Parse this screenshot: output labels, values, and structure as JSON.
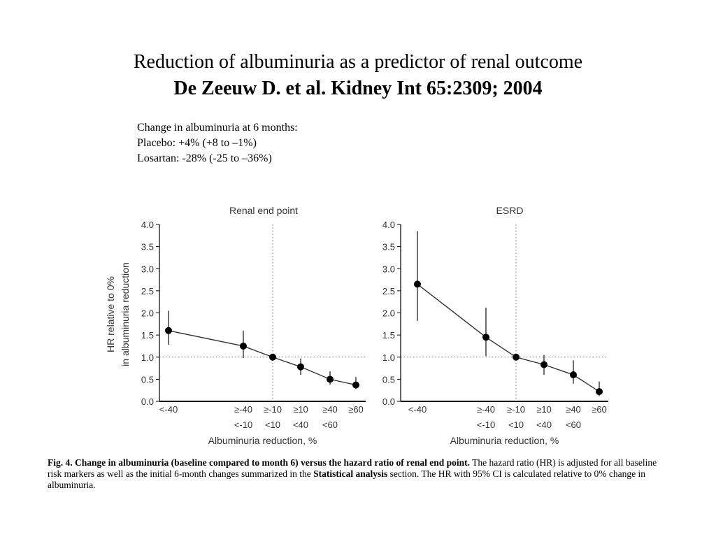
{
  "slide": {
    "title_line1": "Reduction of albuminuria as a predictor of renal outcome",
    "title_line2": "De Zeeuw D. et al. Kidney Int 65:2309; 2004",
    "notes": [
      "Change in albuminuria at 6 months:",
      "Placebo: +4% (+8 to –1%)",
      "Losartan: -28% (-25 to –36%)"
    ]
  },
  "figure": {
    "caption_lead": "Fig. 4.  Change in albuminuria (baseline compared to month 6) versus the hazard ratio of renal end point.",
    "caption_text1": " The hazard ratio (HR) is adjusted for all baseline risk markers as well as the initial 6-month changes summarized in the ",
    "caption_bold": "Statistical analysis",
    "caption_text2": " section. The HR with 95% CI is calculated relative to 0% change in albuminuria."
  },
  "chart_data": [
    {
      "type": "line",
      "title": "Renal end point",
      "xlabel": "Albuminuria reduction, %",
      "ylabel": [
        "HR relative to 0%",
        "in albuminuria reduction"
      ],
      "categories": [
        [
          "<-40",
          ""
        ],
        [
          "≥-40",
          "<-10"
        ],
        [
          "≥-10",
          "<10"
        ],
        [
          "≥10",
          "<40"
        ],
        [
          "≥40",
          "<60"
        ],
        [
          "≥60",
          ""
        ]
      ],
      "y": [
        1.6,
        1.25,
        1.0,
        0.78,
        0.5,
        0.37
      ],
      "ci_low": [
        1.28,
        0.98,
        1.0,
        0.6,
        0.38,
        0.28
      ],
      "ci_high": [
        2.05,
        1.6,
        1.0,
        0.97,
        0.68,
        0.55
      ],
      "ylim": [
        0,
        4.0
      ],
      "yticks": [
        "0.0",
        "0.5",
        "1.0",
        "1.5",
        "2.0",
        "2.5",
        "3.0",
        "3.5",
        "4.0"
      ],
      "reference_line_y": 1.0,
      "reference_line_x": "≥-10"
    },
    {
      "type": "line",
      "title": "ESRD",
      "xlabel": "Albuminuria reduction, %",
      "ylabel": "",
      "categories": [
        [
          "<-40",
          ""
        ],
        [
          "≥-40",
          "<-10"
        ],
        [
          "≥-10",
          "<10"
        ],
        [
          "≥10",
          "<40"
        ],
        [
          "≥40",
          "<60"
        ],
        [
          "≥60",
          ""
        ]
      ],
      "y": [
        2.65,
        1.45,
        1.0,
        0.83,
        0.6,
        0.22
      ],
      "ci_low": [
        1.82,
        1.02,
        1.0,
        0.6,
        0.4,
        0.12
      ],
      "ci_high": [
        3.85,
        2.12,
        1.0,
        1.05,
        0.93,
        0.45
      ],
      "ylim": [
        0,
        4.0
      ],
      "yticks": [
        "0.0",
        "0.5",
        "1.0",
        "1.5",
        "2.0",
        "2.5",
        "3.0",
        "3.5",
        "4.0"
      ],
      "reference_line_y": 1.0,
      "reference_line_x": "≥-10"
    }
  ]
}
